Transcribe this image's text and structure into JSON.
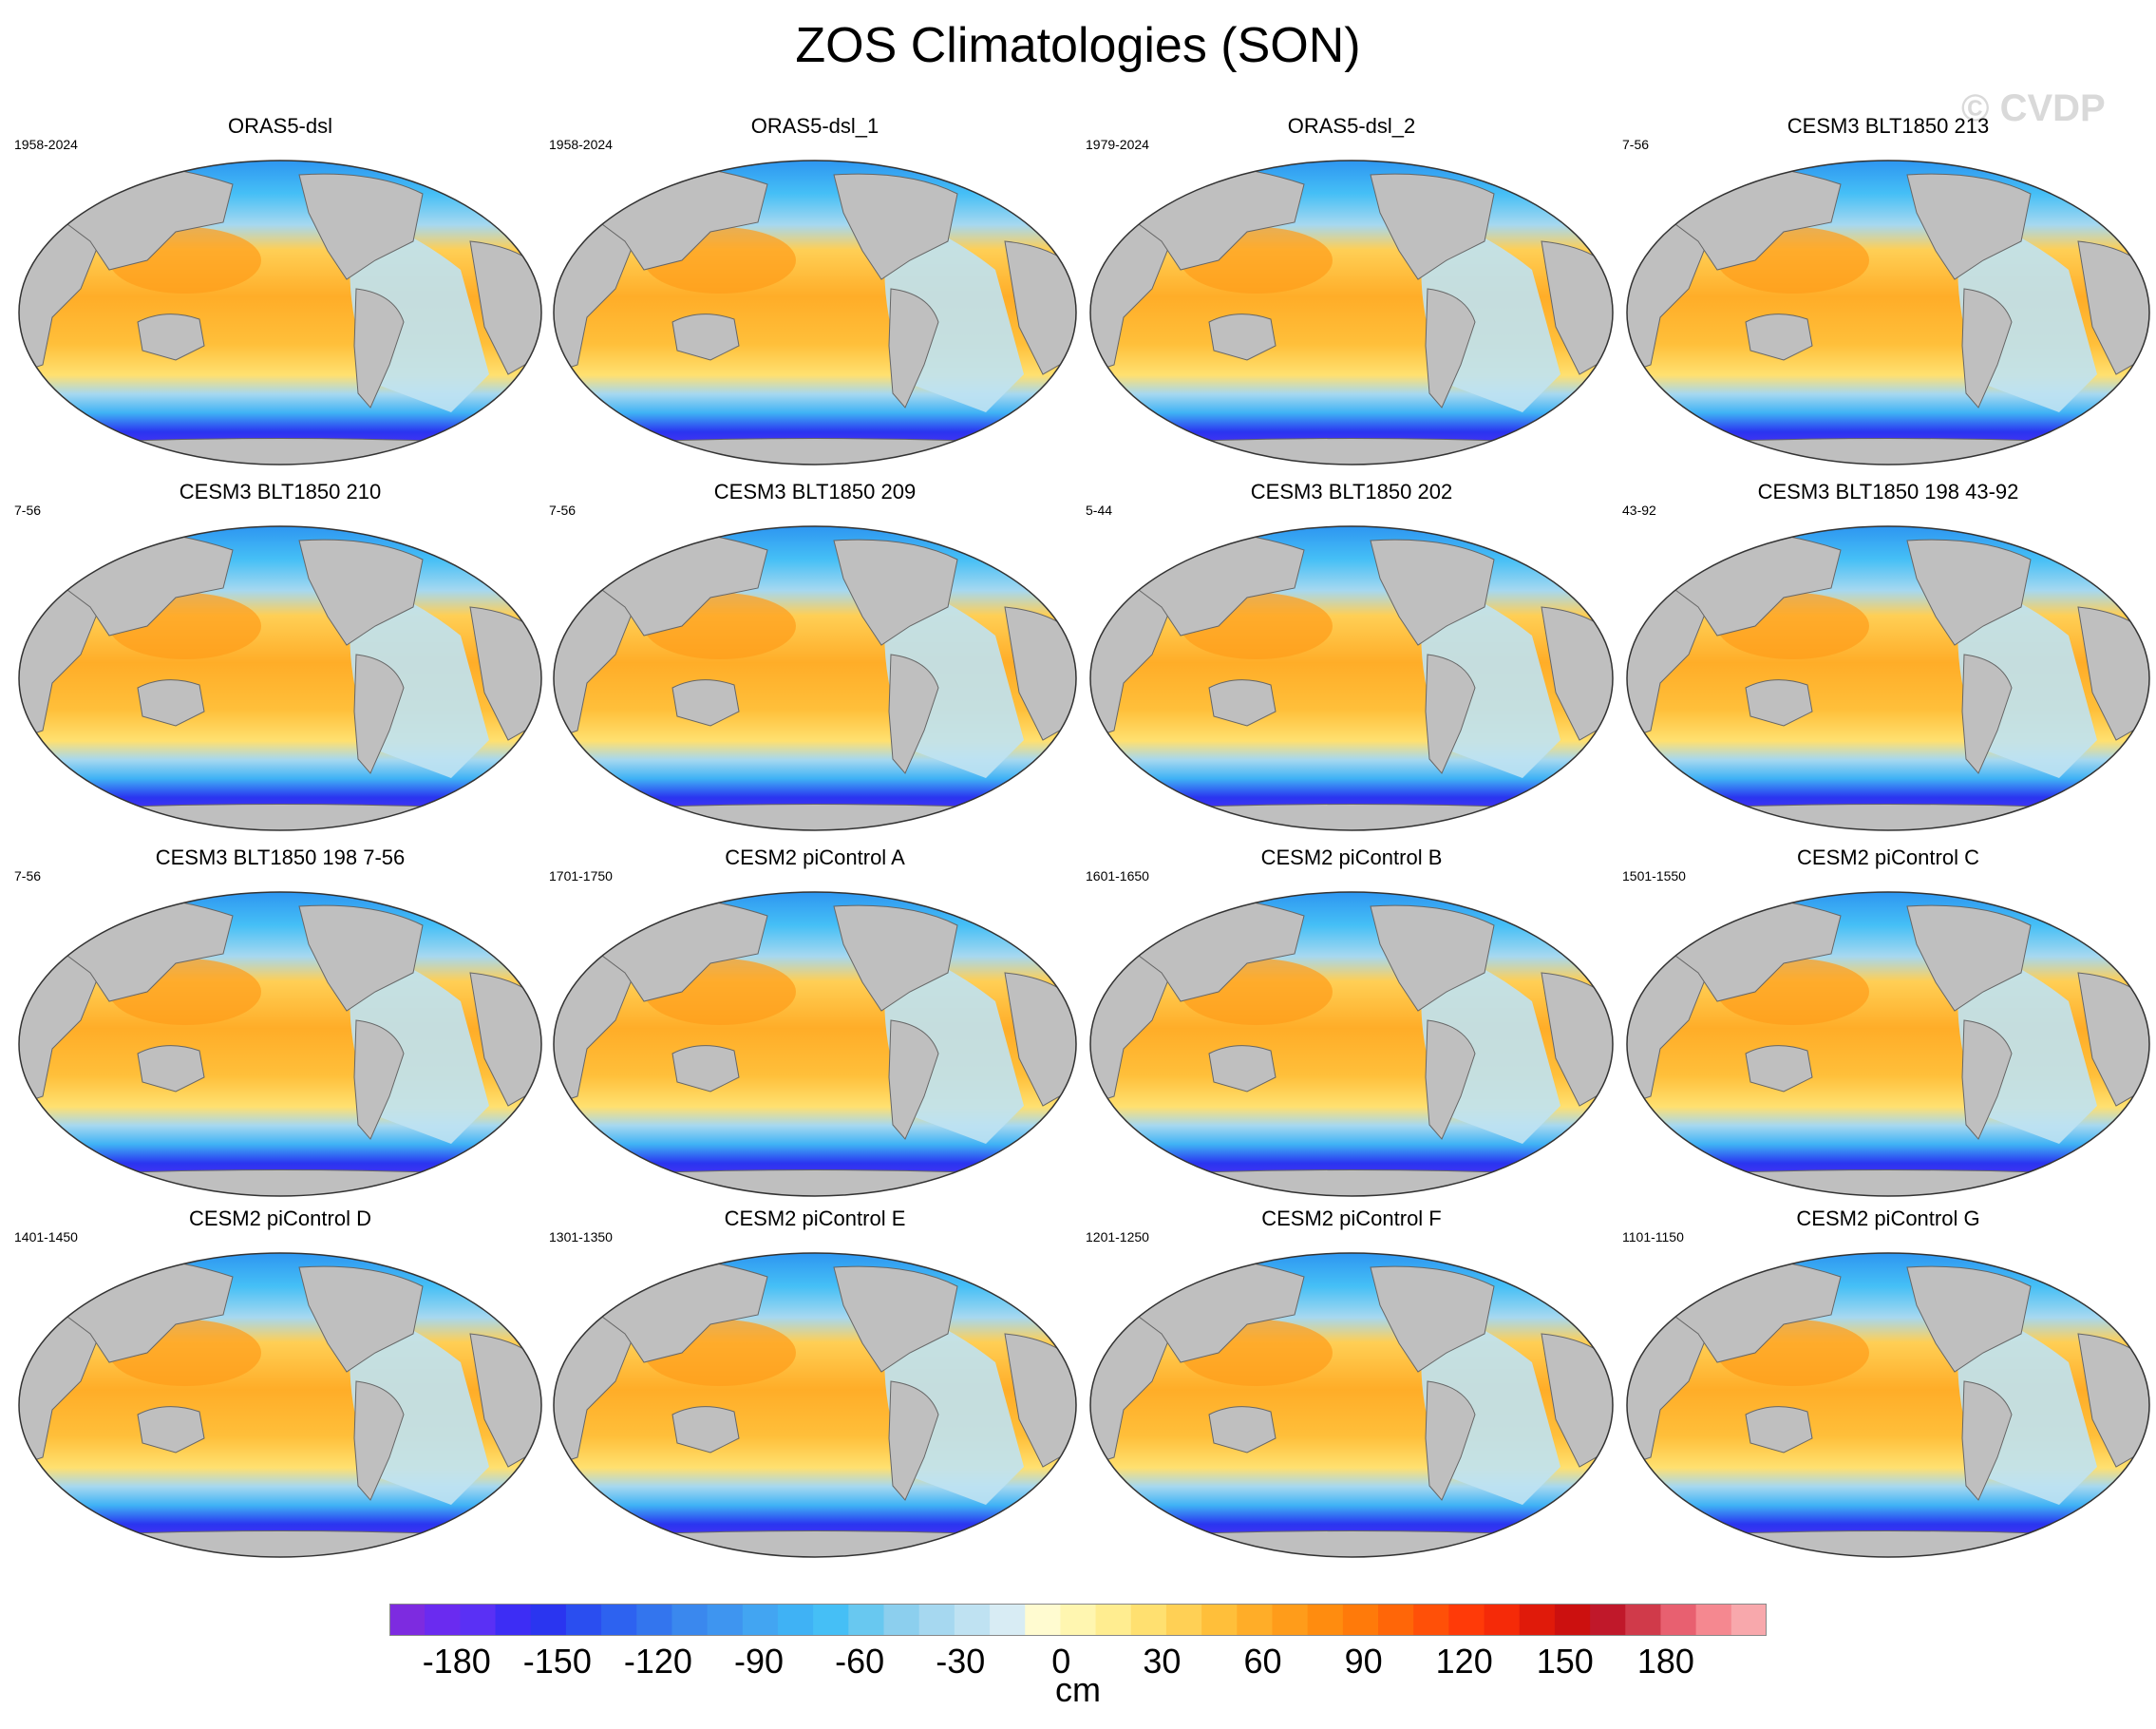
{
  "title": "ZOS Climatologies (SON)",
  "watermark": "© CVDP",
  "panels": [
    {
      "title": "ORAS5-dsl",
      "years": "1958-2024"
    },
    {
      "title": "ORAS5-dsl_1",
      "years": "1958-2024"
    },
    {
      "title": "ORAS5-dsl_2",
      "years": "1979-2024"
    },
    {
      "title": "CESM3 BLT1850 213",
      "years": "7-56"
    },
    {
      "title": "CESM3 BLT1850 210",
      "years": "7-56"
    },
    {
      "title": "CESM3 BLT1850 209",
      "years": "7-56"
    },
    {
      "title": "CESM3 BLT1850 202",
      "years": "5-44"
    },
    {
      "title": "CESM3 BLT1850 198 43-92",
      "years": "43-92"
    },
    {
      "title": "CESM3 BLT1850 198 7-56",
      "years": "7-56"
    },
    {
      "title": "CESM2 piControl A",
      "years": "1701-1750"
    },
    {
      "title": "CESM2 piControl B",
      "years": "1601-1650"
    },
    {
      "title": "CESM2 piControl C",
      "years": "1501-1550"
    },
    {
      "title": "CESM2 piControl D",
      "years": "1401-1450"
    },
    {
      "title": "CESM2 piControl E",
      "years": "1301-1350"
    },
    {
      "title": "CESM2 piControl F",
      "years": "1201-1250"
    },
    {
      "title": "CESM2 piControl G",
      "years": "1101-1150"
    }
  ],
  "colorbar": {
    "units": "cm",
    "labels": [
      "-180",
      "-150",
      "-120",
      "-90",
      "-60",
      "-30",
      "0",
      "30",
      "60",
      "90",
      "120",
      "150",
      "180"
    ],
    "min": -200,
    "max": 210,
    "colors": [
      "#7d2be0",
      "#6a2bf0",
      "#5a30f5",
      "#3d2df5",
      "#2a35f0",
      "#2a4ef0",
      "#2d62f0",
      "#3375ee",
      "#3a88ee",
      "#3e95f0",
      "#42a5f2",
      "#3fb2f5",
      "#45bff6",
      "#68c8f0",
      "#8ccfee",
      "#a6d8f0",
      "#bfe2f2",
      "#d8ecf4",
      "#fffbd0",
      "#fff6b0",
      "#ffed90",
      "#ffe070",
      "#ffd055",
      "#ffbf3a",
      "#ffad28",
      "#ff9c1a",
      "#ff8c0f",
      "#ff7a0a",
      "#ff6608",
      "#ff5008",
      "#ff3a08",
      "#f52a08",
      "#e01a0a",
      "#cc100f",
      "#c0182a",
      "#d03a4a",
      "#e86070",
      "#f58890",
      "#f8a8ac"
    ],
    "land": "#bfbfbf",
    "ocean_cool": "#8ccfee",
    "ocean_warm": "#ffcf55",
    "southern": "#3d2df5"
  }
}
